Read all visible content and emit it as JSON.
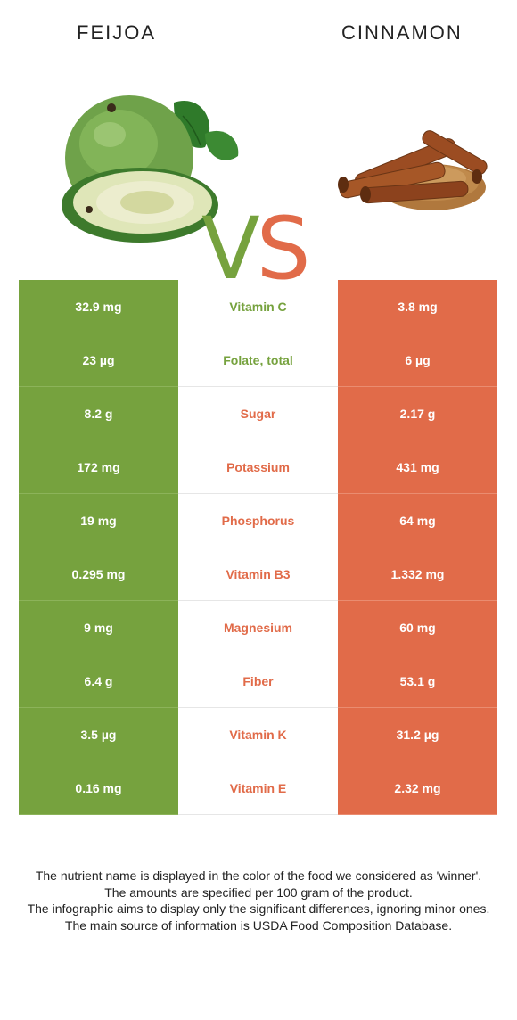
{
  "header": {
    "left_food": "FEIJOA",
    "right_food": "CINNAMON",
    "vs_v": "V",
    "vs_s": "S"
  },
  "colors": {
    "left_accent": "#76a23e",
    "right_accent": "#e16b49"
  },
  "images": {
    "left": "feijoa-fruit-photo",
    "right": "cinnamon-sticks-photo"
  },
  "rows": [
    {
      "left": "32.9 mg",
      "nutrient": "Vitamin C",
      "right": "3.8 mg",
      "winner": "left"
    },
    {
      "left": "23 µg",
      "nutrient": "Folate, total",
      "right": "6 µg",
      "winner": "left"
    },
    {
      "left": "8.2 g",
      "nutrient": "Sugar",
      "right": "2.17 g",
      "winner": "right"
    },
    {
      "left": "172 mg",
      "nutrient": "Potassium",
      "right": "431 mg",
      "winner": "right"
    },
    {
      "left": "19 mg",
      "nutrient": "Phosphorus",
      "right": "64 mg",
      "winner": "right"
    },
    {
      "left": "0.295 mg",
      "nutrient": "Vitamin B3",
      "right": "1.332 mg",
      "winner": "right"
    },
    {
      "left": "9 mg",
      "nutrient": "Magnesium",
      "right": "60 mg",
      "winner": "right"
    },
    {
      "left": "6.4 g",
      "nutrient": "Fiber",
      "right": "53.1 g",
      "winner": "right"
    },
    {
      "left": "3.5 µg",
      "nutrient": "Vitamin K",
      "right": "31.2 µg",
      "winner": "right"
    },
    {
      "left": "0.16 mg",
      "nutrient": "Vitamin E",
      "right": "2.32 mg",
      "winner": "right"
    }
  ],
  "footnote": {
    "line1": "The nutrient name is displayed in the color of the food we considered as 'winner'.",
    "line2": "The amounts are specified per 100 gram of the product.",
    "line3": "The infographic aims to display only the significant differences, ignoring minor ones.",
    "line4": "The main source of information is USDA Food Composition Database."
  }
}
